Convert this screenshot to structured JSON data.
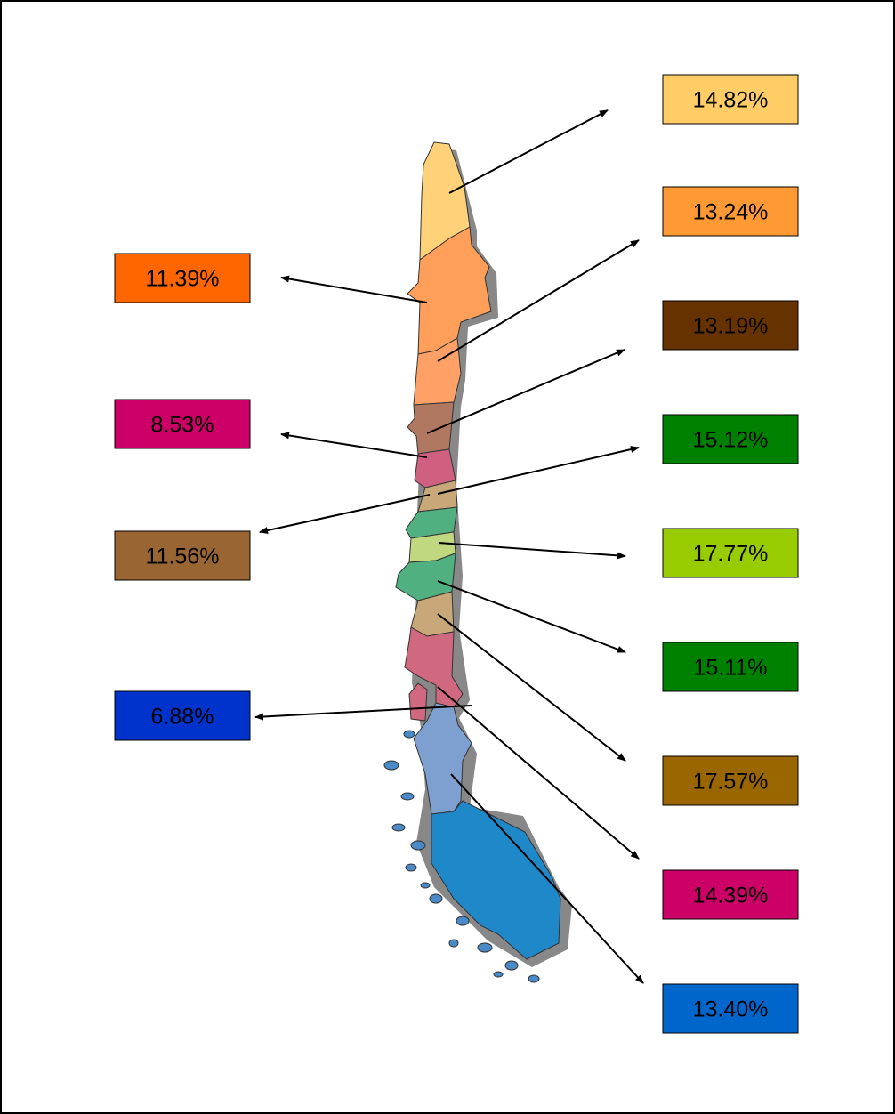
{
  "regions": [
    {
      "label": "14.82%",
      "color": "#ffcc66"
    },
    {
      "label": "13.24%",
      "color": "#ff9933"
    },
    {
      "label": "13.19%",
      "color": "#663300"
    },
    {
      "label": "15.12%",
      "color": "#008000"
    },
    {
      "label": "17.77%",
      "color": "#99cc00"
    },
    {
      "label": "15.11%",
      "color": "#008000"
    },
    {
      "label": "17.57%",
      "color": "#996600"
    },
    {
      "label": "14.39%",
      "color": "#cc0066"
    },
    {
      "label": "13.40%",
      "color": "#0066cc"
    },
    {
      "label": "11.39%",
      "color": "#ff6600"
    },
    {
      "label": "8.53%",
      "color": "#cc0066"
    },
    {
      "label": "11.56%",
      "color": "#996633"
    },
    {
      "label": "6.88%",
      "color": "#0033cc"
    }
  ]
}
